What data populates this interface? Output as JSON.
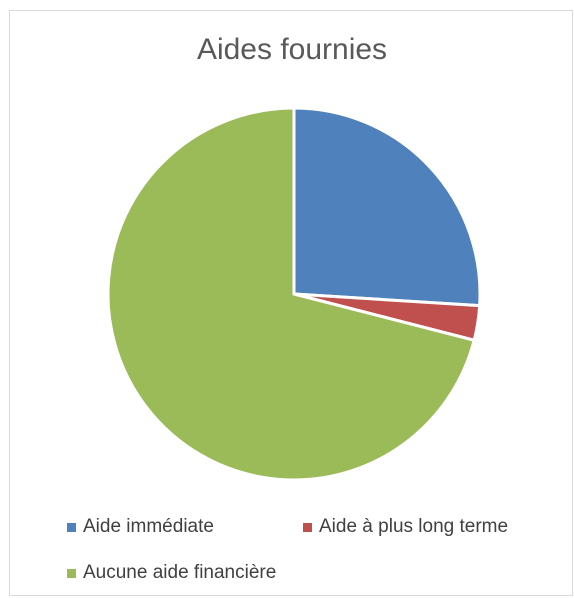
{
  "chart_data": {
    "type": "pie",
    "title": "Aides fournies",
    "categories": [
      "Aide immédiate",
      "Aide à plus long terme",
      "Aucune aide financière"
    ],
    "values": [
      26,
      3,
      71
    ],
    "colors": [
      "#4f81bd",
      "#c0504d",
      "#9bbb59"
    ],
    "legend_position": "bottom"
  }
}
